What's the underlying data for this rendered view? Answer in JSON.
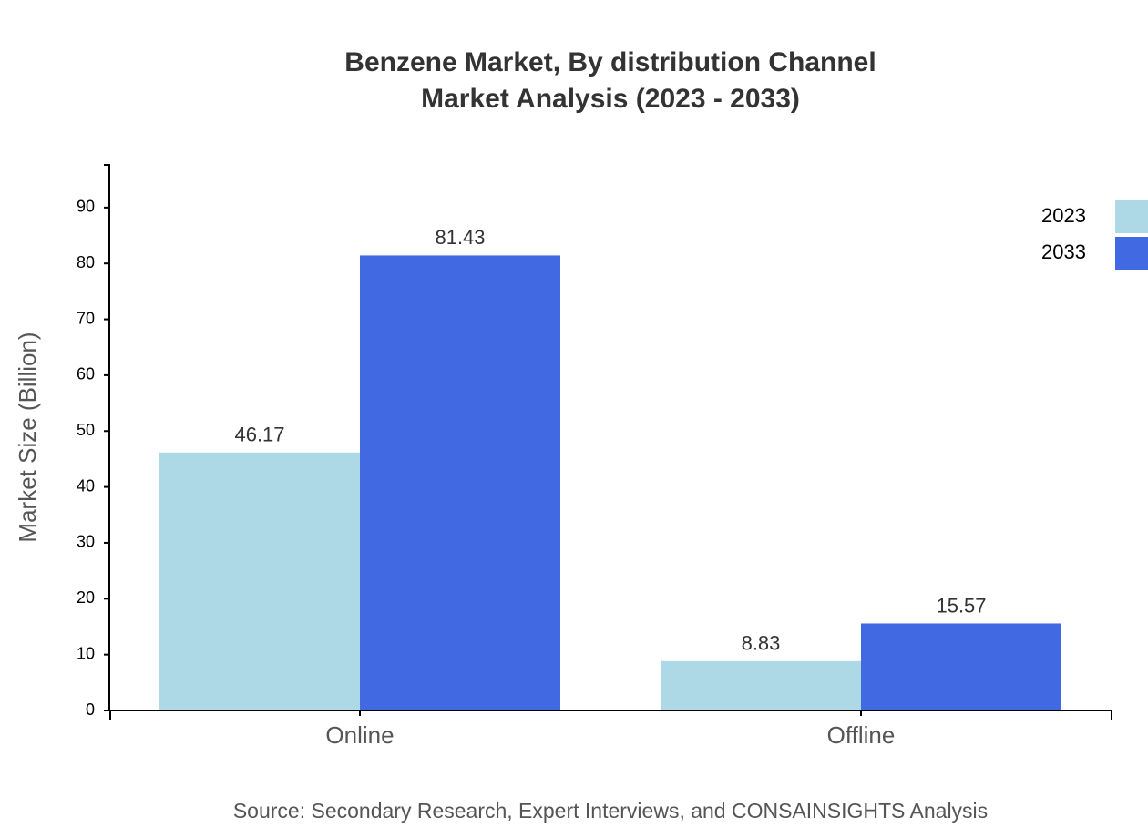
{
  "chart_data": {
    "type": "bar",
    "title": "Benzene Market, By distribution Channel",
    "subtitle": "Market Analysis (2023 - 2033)",
    "y_label": "Market Size (Billion)",
    "source": "Source: Secondary Research, Expert Interviews, and CONSAINSIGHTS Analysis",
    "categories": [
      "Online",
      "Offline"
    ],
    "series": [
      {
        "name": "2023",
        "color": "#add8e6",
        "values": [
          46.17,
          8.83
        ]
      },
      {
        "name": "2033",
        "color": "#4169e1",
        "values": [
          81.43,
          15.57
        ]
      }
    ],
    "ylim": [
      0,
      97.8
    ],
    "yticks": [
      0,
      10,
      20,
      30,
      40,
      50,
      60,
      70,
      80,
      90
    ],
    "legend": "top-right"
  }
}
